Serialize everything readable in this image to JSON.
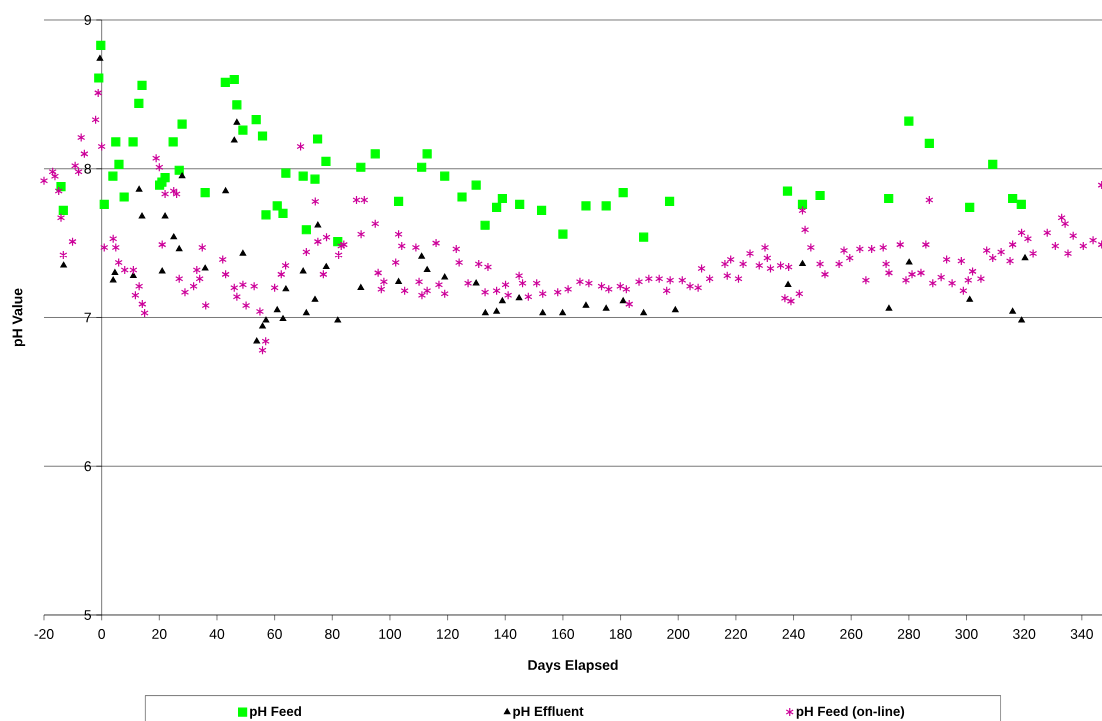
{
  "chart_data": {
    "type": "scatter",
    "xlabel": "Days Elapsed",
    "ylabel": "pH Value",
    "xlim": [
      -20,
      347
    ],
    "ylim": [
      5,
      9
    ],
    "xticks": [
      -20,
      0,
      20,
      40,
      60,
      80,
      100,
      120,
      140,
      160,
      180,
      200,
      220,
      240,
      260,
      280,
      300,
      320,
      340
    ],
    "yticks": [
      5,
      6,
      7,
      8,
      9
    ],
    "grid": "y",
    "legend": "bottom",
    "series": [
      {
        "name": "pH Feed",
        "color": "#00ff00",
        "marker": "square",
        "x": [
          -14.1,
          -13.3,
          -1.0,
          -0.3,
          0.9,
          3.9,
          4.9,
          6.0,
          7.8,
          10.9,
          12.9,
          14.0,
          20.1,
          20.9,
          22.0,
          24.8,
          26.9,
          27.9,
          35.9,
          42.9,
          46.0,
          46.9,
          49.0,
          53.6,
          55.8,
          57.0,
          60.9,
          62.9,
          63.9,
          69.9,
          71.0,
          74.0,
          74.9,
          77.8,
          81.9,
          89.9,
          94.9,
          103.0,
          111.0,
          112.9,
          119.0,
          125.0,
          129.9,
          133.0,
          137.0,
          139.0,
          145.0,
          152.6,
          160.0,
          168.0,
          175.0,
          180.9,
          188.0,
          197.0,
          237.9,
          243.1,
          249.2,
          273.0,
          280.0,
          287.1,
          301.1,
          309.1,
          316.0,
          319.0
        ],
        "values": [
          7.88,
          7.72,
          8.61,
          8.83,
          7.76,
          7.95,
          8.18,
          8.03,
          7.81,
          8.18,
          8.44,
          8.56,
          7.89,
          7.91,
          7.94,
          8.18,
          7.99,
          8.3,
          7.84,
          8.58,
          8.6,
          8.43,
          8.26,
          8.33,
          8.22,
          7.69,
          7.75,
          7.7,
          7.97,
          7.95,
          7.59,
          7.93,
          8.2,
          8.05,
          7.51,
          8.01,
          8.1,
          7.78,
          8.01,
          8.1,
          7.95,
          7.81,
          7.89,
          7.62,
          7.74,
          7.8,
          7.76,
          7.72,
          7.56,
          7.75,
          7.75,
          7.84,
          7.54,
          7.78,
          7.85,
          7.76,
          7.82,
          7.8,
          8.32,
          8.17,
          7.74,
          8.03,
          7.8,
          7.76
        ]
      },
      {
        "name": "pH Effluent",
        "color": "#000000",
        "marker": "triangle",
        "x": [
          -13.2,
          -0.6,
          4.0,
          4.6,
          11.0,
          13.0,
          14.0,
          21.0,
          22.0,
          25.0,
          26.9,
          27.9,
          35.9,
          43.0,
          46.0,
          46.9,
          49.0,
          53.8,
          55.8,
          57.0,
          60.9,
          62.9,
          63.9,
          69.9,
          71.0,
          74.0,
          75.0,
          77.9,
          81.9,
          89.9,
          103.0,
          111.0,
          112.9,
          119.0,
          129.9,
          133.1,
          137.0,
          139.0,
          144.8,
          153.0,
          159.9,
          168.0,
          175.0,
          180.9,
          188.0,
          199.0,
          238.1,
          243.1,
          273.1,
          280.1,
          301.1,
          316.0,
          319.1,
          320.3
        ],
        "values": [
          7.35,
          8.74,
          7.25,
          7.3,
          7.28,
          7.86,
          7.68,
          7.31,
          7.68,
          7.54,
          7.46,
          7.95,
          7.33,
          7.85,
          8.19,
          8.31,
          7.43,
          6.84,
          6.94,
          6.98,
          7.05,
          6.99,
          7.19,
          7.31,
          7.03,
          7.12,
          7.62,
          7.34,
          6.98,
          7.2,
          7.24,
          7.41,
          7.32,
          7.27,
          7.23,
          7.03,
          7.04,
          7.11,
          7.13,
          7.03,
          7.03,
          7.08,
          7.06,
          7.11,
          7.03,
          7.05,
          7.22,
          7.36,
          7.06,
          7.37,
          7.12,
          7.04,
          6.98,
          7.4
        ]
      },
      {
        "name": "pH Feed (on-line)",
        "color": "#cc0099",
        "marker": "cross",
        "x": [
          -20.0,
          -17.0,
          -16.2,
          -14.9,
          -14.1,
          -13.3,
          -10.1,
          -9.2,
          -8.0,
          -7.1,
          -6.0,
          -2.1,
          -1.2,
          0.0,
          0.9,
          4.0,
          4.9,
          5.9,
          8.0,
          11.0,
          11.7,
          13.0,
          14.1,
          14.9,
          18.9,
          20.0,
          21.0,
          22.0,
          25.0,
          26.0,
          26.9,
          28.9,
          31.9,
          33.0,
          34.0,
          34.9,
          36.1,
          42.0,
          43.0,
          46.0,
          46.9,
          49.0,
          50.1,
          52.9,
          54.9,
          55.8,
          56.9,
          60.0,
          62.3,
          63.8,
          69.0,
          71.0,
          74.1,
          75.0,
          76.9,
          78.0,
          82.2,
          83.1,
          84.0,
          88.4,
          90.0,
          91.1,
          94.9,
          95.9,
          97.0,
          97.9,
          102.0,
          103.0,
          104.1,
          105.1,
          109.0,
          110.1,
          111.1,
          112.9,
          116.0,
          117.0,
          119.0,
          123.0,
          124.0,
          127.1,
          130.8,
          133.0,
          134.0,
          137.0,
          140.1,
          141.0,
          144.8,
          146.0,
          148.0,
          150.9,
          153.0,
          158.2,
          161.8,
          165.9,
          169.0,
          173.4,
          175.9,
          179.9,
          182.0,
          183.0,
          186.4,
          189.8,
          193.4,
          196.0,
          197.2,
          201.4,
          204.1,
          206.9,
          208.1,
          210.9,
          216.2,
          217.0,
          218.2,
          220.9,
          222.5,
          224.9,
          228.1,
          230.1,
          230.9,
          232.0,
          235.5,
          237.0,
          238.3,
          239.1,
          242.0,
          243.1,
          244.0,
          246.0,
          249.2,
          250.9,
          255.8,
          257.5,
          259.5,
          263.0,
          265.1,
          267.1,
          271.1,
          272.1,
          273.1,
          277.0,
          279.0,
          281.1,
          284.2,
          285.9,
          287.1,
          288.3,
          291.2,
          293.1,
          295.0,
          298.2,
          298.9,
          300.6,
          302.1,
          305.0,
          307.0,
          309.1,
          312.0,
          315.1,
          316.0,
          319.1,
          321.3,
          323.1,
          328.0,
          330.8,
          333.0,
          334.2,
          335.2,
          337.0,
          340.5,
          343.9,
          346.9,
          346.9
        ],
        "values": [
          7.92,
          7.98,
          7.95,
          7.85,
          7.67,
          7.42,
          7.51,
          8.02,
          7.98,
          8.21,
          8.1,
          8.33,
          8.51,
          8.15,
          7.47,
          7.53,
          7.47,
          7.37,
          7.32,
          7.32,
          7.15,
          7.21,
          7.09,
          7.03,
          8.07,
          8.01,
          7.49,
          7.83,
          7.85,
          7.83,
          7.26,
          7.17,
          7.21,
          7.32,
          7.26,
          7.47,
          7.08,
          7.39,
          7.29,
          7.2,
          7.14,
          7.22,
          7.08,
          7.21,
          7.04,
          6.78,
          6.84,
          7.2,
          7.29,
          7.35,
          8.15,
          7.44,
          7.78,
          7.51,
          7.29,
          7.54,
          7.42,
          7.48,
          7.49,
          7.79,
          7.56,
          7.79,
          7.63,
          7.3,
          7.19,
          7.24,
          7.37,
          7.56,
          7.48,
          7.18,
          7.47,
          7.24,
          7.15,
          7.18,
          7.5,
          7.22,
          7.16,
          7.46,
          7.37,
          7.23,
          7.36,
          7.17,
          7.34,
          7.18,
          7.22,
          7.15,
          7.28,
          7.23,
          7.14,
          7.23,
          7.16,
          7.17,
          7.19,
          7.24,
          7.23,
          7.21,
          7.19,
          7.21,
          7.19,
          7.09,
          7.24,
          7.26,
          7.26,
          7.18,
          7.25,
          7.25,
          7.21,
          7.2,
          7.33,
          7.26,
          7.36,
          7.28,
          7.39,
          7.26,
          7.36,
          7.43,
          7.35,
          7.47,
          7.4,
          7.33,
          7.35,
          7.13,
          7.34,
          7.11,
          7.16,
          7.72,
          7.59,
          7.47,
          7.36,
          7.29,
          7.36,
          7.45,
          7.4,
          7.46,
          7.25,
          7.46,
          7.47,
          7.36,
          7.3,
          7.49,
          7.25,
          7.29,
          7.3,
          7.49,
          7.79,
          7.23,
          7.27,
          7.39,
          7.23,
          7.38,
          7.18,
          7.25,
          7.31,
          7.26,
          7.45,
          7.4,
          7.44,
          7.38,
          7.49,
          7.57,
          7.53,
          7.43,
          7.57,
          7.48,
          7.67,
          7.63,
          7.43,
          7.55,
          7.48,
          7.52,
          7.49,
          7.89
        ]
      }
    ]
  }
}
